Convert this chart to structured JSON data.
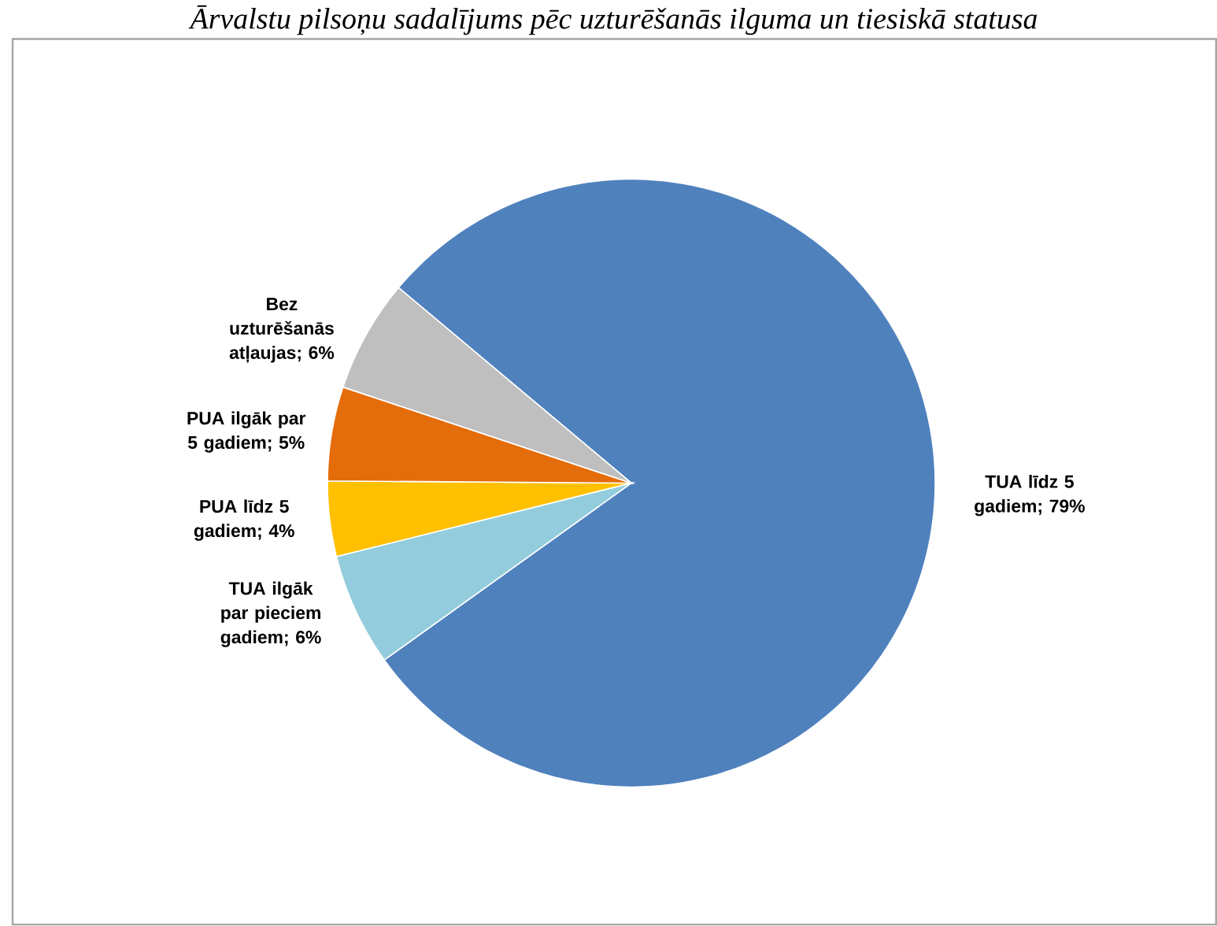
{
  "chart_data": {
    "type": "pie",
    "title": "Ārvalstu pilsoņu sadalījums pēc uzturēšanās ilguma un tiesiskā statusa",
    "categories": [
      "TUA līdz 5 gadiem",
      "TUA ilgāk par pieciem gadiem",
      "PUA līdz 5 gadiem",
      "PUA ilgāk par 5 gadiem",
      "Bez uzturēšanās atļaujas"
    ],
    "values": [
      79,
      6,
      4,
      5,
      6
    ],
    "value_labels": [
      "; 79%",
      "; 6%",
      "; 4%",
      "; 5%",
      "; 6%"
    ],
    "colors": [
      "#4f81bd",
      "#93cddd",
      "#ffc000",
      "#e46c0a",
      "#bfbfbf"
    ]
  }
}
